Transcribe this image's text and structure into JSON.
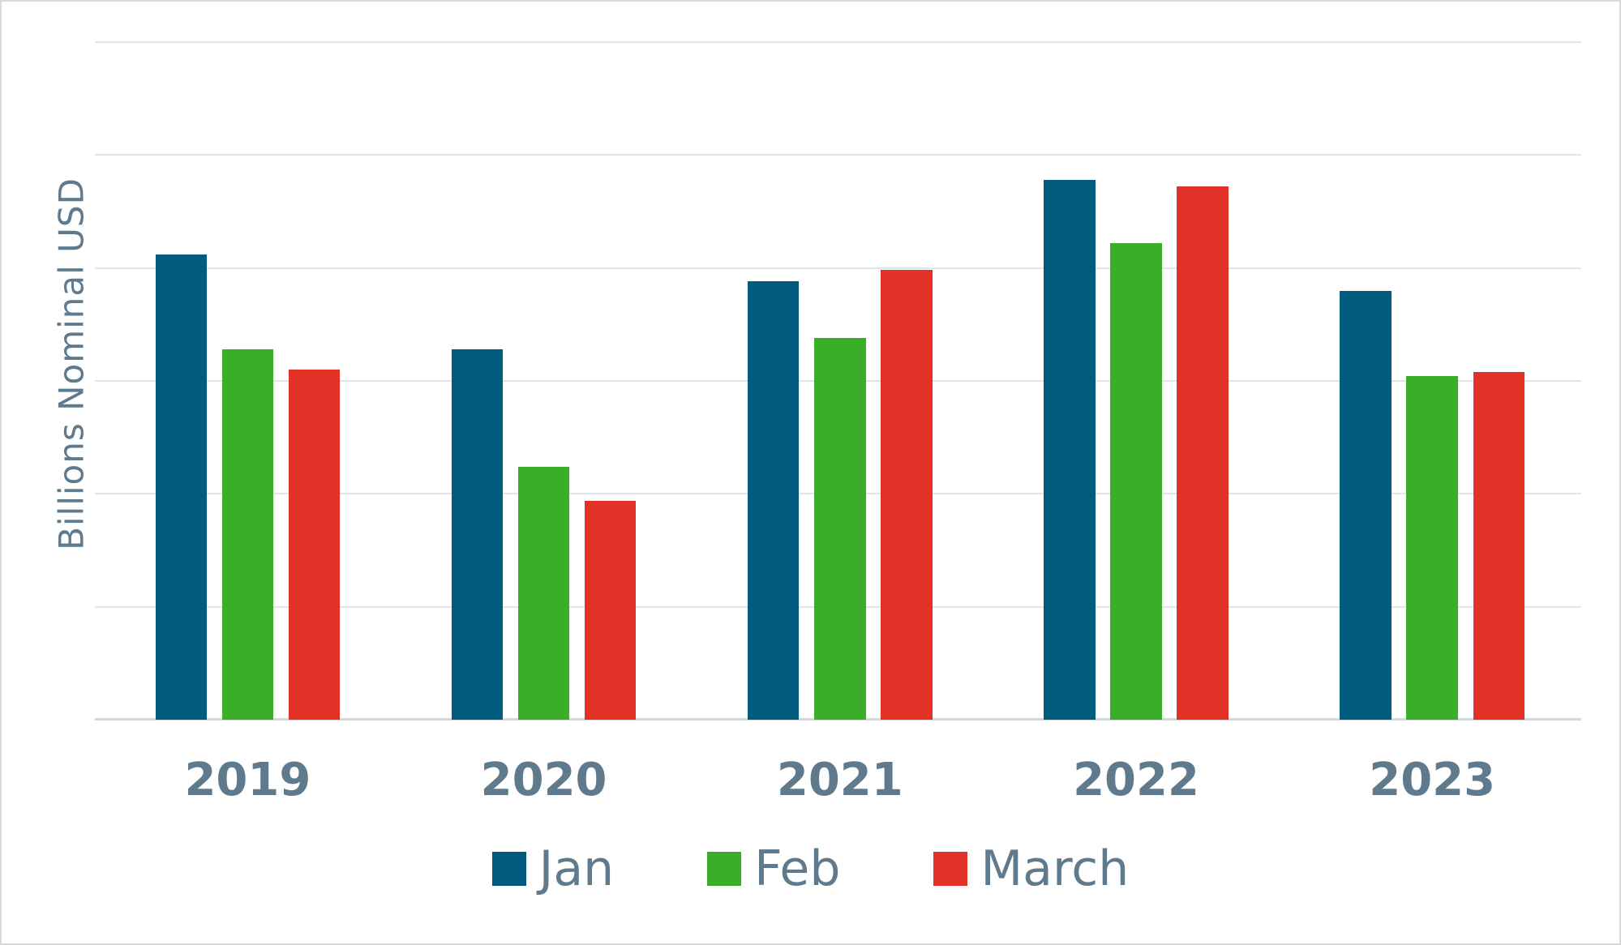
{
  "chart_data": {
    "type": "bar",
    "title": "",
    "xlabel": "",
    "ylabel": "Billions Nominal USD",
    "categories": [
      "2019",
      "2020",
      "2021",
      "2022",
      "2023"
    ],
    "series": [
      {
        "name": "Jan",
        "color": "#015c7d",
        "values": [
          20.6,
          16.4,
          19.4,
          23.9,
          19.0
        ]
      },
      {
        "name": "Feb",
        "color": "#3bae29",
        "values": [
          16.4,
          11.2,
          16.9,
          21.1,
          15.2
        ]
      },
      {
        "name": "March",
        "color": "#e23127",
        "values": [
          15.5,
          9.7,
          19.9,
          23.6,
          15.4
        ]
      }
    ],
    "ylim": [
      0,
      30
    ],
    "gridline_step": 5,
    "y_tick_labels_visible": false,
    "grid": "horizontal",
    "legend_position": "bottom"
  },
  "styles": {
    "background_color": "#ffffff",
    "border_color": "#d6dadd",
    "gridline_color": "#e0e5e9",
    "axis_line_color": "#d4d9dc",
    "label_color": "#5f7a8d"
  }
}
